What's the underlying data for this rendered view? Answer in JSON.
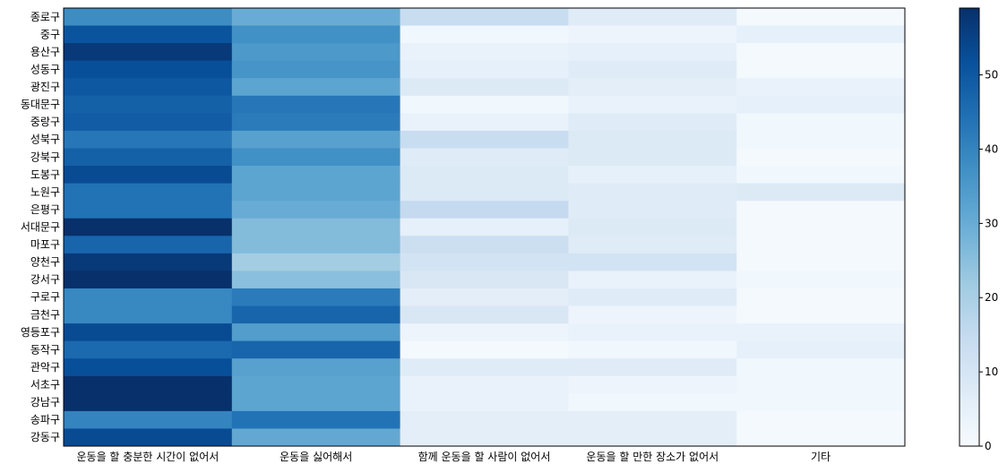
{
  "chart_data": {
    "type": "heatmap",
    "x_categories": [
      "운동을 할 충분한 시간이 없어서",
      "운동을 싫어해서",
      "함께 운동을 할 사람이 없어서",
      "운동을 할 만한 장소가 없어서",
      "기타"
    ],
    "y_categories": [
      "종로구",
      "중구",
      "용산구",
      "성동구",
      "광진구",
      "동대문구",
      "중랑구",
      "성북구",
      "강북구",
      "도봉구",
      "노원구",
      "은평구",
      "서대문구",
      "마포구",
      "양천구",
      "강서구",
      "구로구",
      "금천구",
      "영등포구",
      "동작구",
      "관악구",
      "서초구",
      "강남구",
      "송파구",
      "강동구"
    ],
    "values": [
      [
        38,
        30,
        14,
        7,
        1
      ],
      [
        51,
        37,
        2,
        3,
        5
      ],
      [
        57,
        35,
        4,
        5,
        1
      ],
      [
        52,
        36,
        5,
        7,
        1
      ],
      [
        50,
        32,
        8,
        6,
        4
      ],
      [
        48,
        43,
        2,
        4,
        5
      ],
      [
        49,
        42,
        4,
        7,
        2
      ],
      [
        43,
        33,
        14,
        8,
        2
      ],
      [
        48,
        37,
        7,
        8,
        1
      ],
      [
        53,
        32,
        8,
        5,
        2
      ],
      [
        44,
        32,
        8,
        7,
        8
      ],
      [
        44,
        30,
        15,
        7,
        1
      ],
      [
        59,
        26,
        5,
        8,
        1
      ],
      [
        47,
        26,
        13,
        7,
        1
      ],
      [
        57,
        21,
        11,
        11,
        1
      ],
      [
        59,
        25,
        9,
        4,
        2
      ],
      [
        39,
        42,
        6,
        7,
        1
      ],
      [
        39,
        47,
        9,
        3,
        1
      ],
      [
        53,
        34,
        3,
        4,
        4
      ],
      [
        46,
        47,
        1,
        2,
        5
      ],
      [
        52,
        33,
        7,
        7,
        2
      ],
      [
        59,
        32,
        4,
        3,
        2
      ],
      [
        59,
        32,
        4,
        2,
        2
      ],
      [
        40,
        44,
        6,
        6,
        1
      ],
      [
        53,
        31,
        6,
        6,
        1
      ]
    ],
    "colorbar": {
      "min": 0,
      "max": 59,
      "ticks": [
        0,
        10,
        20,
        30,
        40,
        50
      ],
      "colormap": "Blues"
    }
  }
}
